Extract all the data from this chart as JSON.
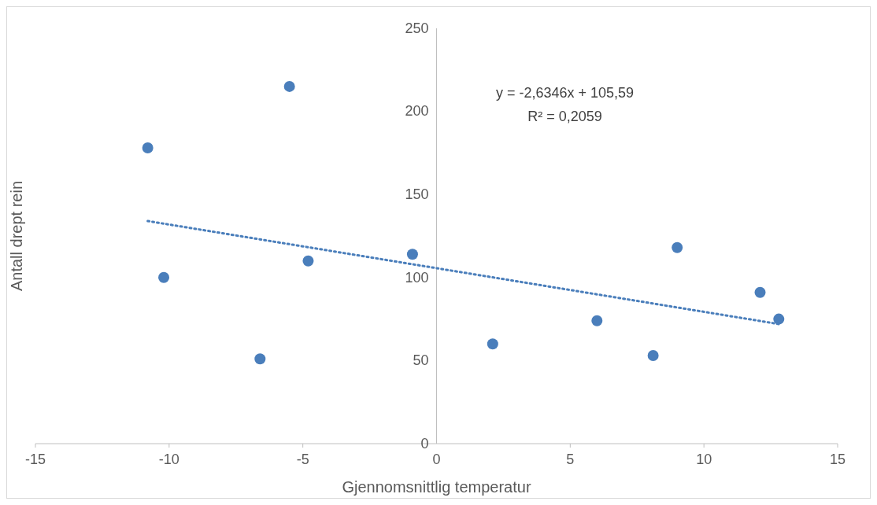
{
  "chart_data": {
    "type": "scatter",
    "xlabel": "Gjennomsnittlig temperatur",
    "ylabel": "Antall drept rein",
    "xlim": [
      -15,
      15
    ],
    "xticks": [
      -15,
      -10,
      -5,
      0,
      5,
      10,
      15
    ],
    "ylim": [
      0,
      250
    ],
    "yticks": [
      0,
      50,
      100,
      150,
      200,
      250
    ],
    "grid": false,
    "marker": "circle",
    "series": [
      {
        "color": "#4a7ebb",
        "x": [
          -10.8,
          -10.2,
          -6.6,
          -5.5,
          -4.8,
          -0.9,
          2.1,
          6,
          8.1,
          9,
          12.1,
          12.8
        ],
        "values": [
          178,
          100,
          51,
          215,
          110,
          114,
          60,
          74,
          53,
          118,
          91,
          75
        ]
      },
      {
        "type": "line",
        "color": "#4a7ebb",
        "line_style": "dotted",
        "marker": "none",
        "x": [
          -10.8,
          12.8
        ],
        "values": [
          134,
          72
        ]
      }
    ],
    "annotations": [
      "y = -2,6346x + 105,59",
      "R² = 0,2059"
    ]
  }
}
